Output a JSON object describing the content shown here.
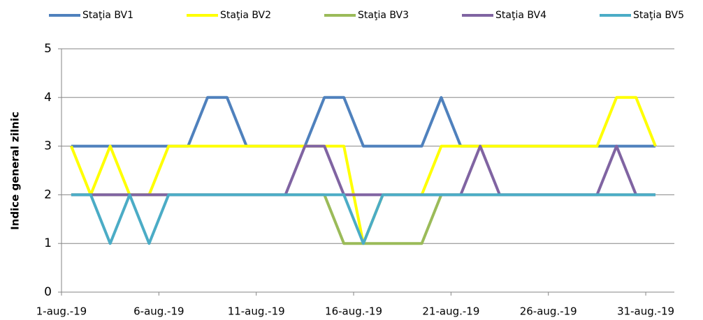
{
  "chart_data": {
    "type": "line",
    "ylabel": "Indice general zilnic",
    "categories": [
      "1-aug.-19",
      null,
      null,
      null,
      null,
      "6-aug.-19",
      null,
      null,
      null,
      null,
      "11-aug.-19",
      null,
      null,
      null,
      null,
      "16-aug.-19",
      null,
      null,
      null,
      null,
      "21-aug.-19",
      null,
      null,
      null,
      null,
      "26-aug.-19",
      null,
      null,
      null,
      null,
      "31-aug.-19"
    ],
    "series": [
      {
        "name": "Staţia BV1",
        "color": "#4f81bd",
        "values": [
          3,
          3,
          3,
          3,
          3,
          3,
          3,
          4,
          4,
          3,
          3,
          3,
          3,
          4,
          4,
          3,
          3,
          3,
          3,
          4,
          3,
          3,
          3,
          3,
          3,
          3,
          3,
          3,
          3,
          3,
          3
        ]
      },
      {
        "name": "Staţia BV2",
        "color": "#ffff00",
        "values": [
          3,
          2,
          3,
          2,
          2,
          3,
          3,
          3,
          3,
          3,
          3,
          3,
          3,
          3,
          3,
          1,
          2,
          2,
          2,
          3,
          3,
          3,
          3,
          3,
          3,
          3,
          3,
          3,
          4,
          4,
          3
        ]
      },
      {
        "name": "Staţia BV3",
        "color": "#9bbb59",
        "values": [
          2,
          2,
          2,
          2,
          2,
          2,
          2,
          2,
          2,
          2,
          2,
          2,
          2,
          2,
          1,
          1,
          1,
          1,
          1,
          2,
          2,
          2,
          2,
          2,
          2,
          2,
          2,
          2,
          2,
          2,
          2
        ]
      },
      {
        "name": "Staţia BV4",
        "color": "#8064a2",
        "values": [
          2,
          2,
          2,
          2,
          2,
          2,
          2,
          2,
          2,
          2,
          2,
          2,
          3,
          3,
          2,
          2,
          2,
          2,
          2,
          2,
          2,
          3,
          2,
          2,
          2,
          2,
          2,
          2,
          3,
          2,
          2
        ]
      },
      {
        "name": "Staţia BV5",
        "color": "#4bacc6",
        "values": [
          2,
          2,
          1,
          2,
          1,
          2,
          2,
          2,
          2,
          2,
          2,
          2,
          2,
          2,
          2,
          1,
          2,
          2,
          2,
          2,
          2,
          2,
          2,
          2,
          2,
          2,
          2,
          2,
          2,
          2,
          2
        ]
      }
    ],
    "ylim": [
      0,
      5
    ],
    "yticks": [
      0,
      1,
      2,
      3,
      4,
      5
    ],
    "grid": true,
    "legend": "top"
  }
}
